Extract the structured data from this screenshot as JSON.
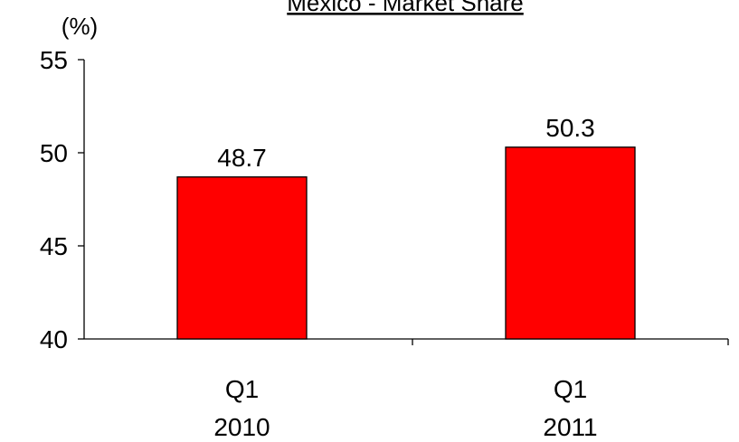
{
  "chart_data": {
    "type": "bar",
    "title": "Mexico - Market Share",
    "y_label": "(%)",
    "categories": [
      "Q1\n2010",
      "Q1\n2011"
    ],
    "values": [
      48.7,
      50.3
    ],
    "color": "#ff0000",
    "ylim": [
      40,
      55
    ],
    "yticks": [
      40,
      45,
      50,
      55
    ]
  }
}
